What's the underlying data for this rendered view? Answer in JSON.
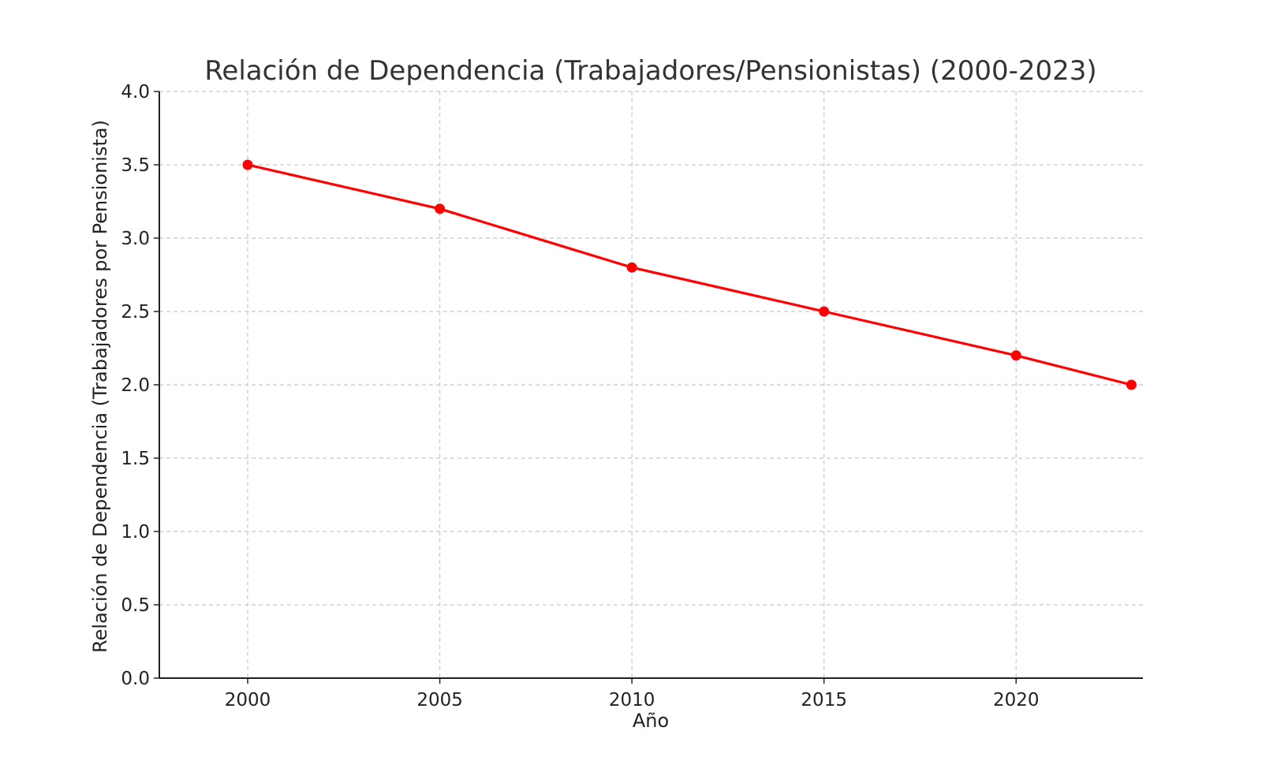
{
  "colors": {
    "series": "#ff0000",
    "grid": "#c8c8c8",
    "axis": "#222222",
    "title": "#333333"
  },
  "chart_data": {
    "type": "line",
    "title": "Relación de Dependencia (Trabajadores/Pensionistas) (2000-2023)",
    "xlabel": "Año",
    "ylabel": "Relación de Dependencia (Trabajadores por Pensionista)",
    "xlim": [
      1997.7,
      2023.3
    ],
    "ylim": [
      0,
      4
    ],
    "x_ticks": [
      2000,
      2005,
      2010,
      2015,
      2020
    ],
    "y_ticks": [
      0.0,
      0.5,
      1.0,
      1.5,
      2.0,
      2.5,
      3.0,
      3.5,
      4.0
    ],
    "grid": true,
    "grid_style": "dashed",
    "legend": "none",
    "x": [
      2000,
      2005,
      2010,
      2015,
      2020,
      2023
    ],
    "series": [
      {
        "values": [
          3.5,
          3.2,
          2.8,
          2.5,
          2.2,
          2.0
        ],
        "color": "#ff0000",
        "marker": "circle"
      }
    ]
  }
}
